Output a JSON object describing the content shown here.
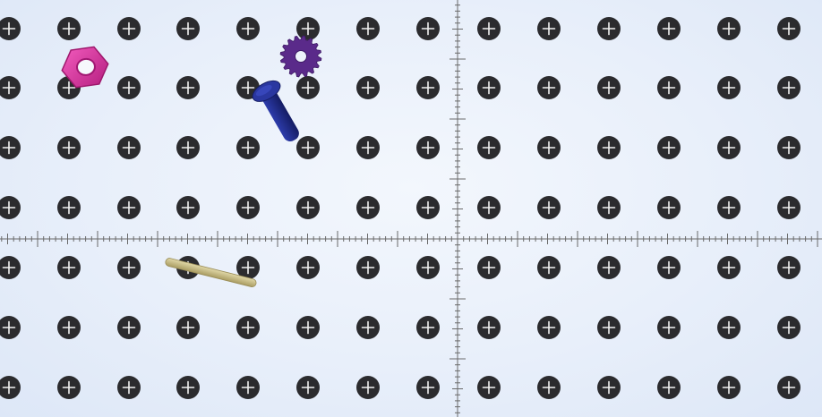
{
  "scene": {
    "background_color": "#e8effa",
    "peg_color": "#2b2b2e",
    "peg_icon": "plus-hole-icon",
    "ruler_color": "#6a6a6a"
  },
  "parts": [
    {
      "name": "hex-nut-part",
      "color": "#d8339e",
      "icon": "hex-nut-icon"
    },
    {
      "name": "gear-part",
      "color": "#5a2a8a",
      "icon": "gear-icon"
    },
    {
      "name": "bolt-part",
      "color": "#1f2a86",
      "icon": "bolt-icon"
    },
    {
      "name": "dowel-rod-part",
      "color": "#cbbf85",
      "icon": "rod-icon"
    }
  ]
}
